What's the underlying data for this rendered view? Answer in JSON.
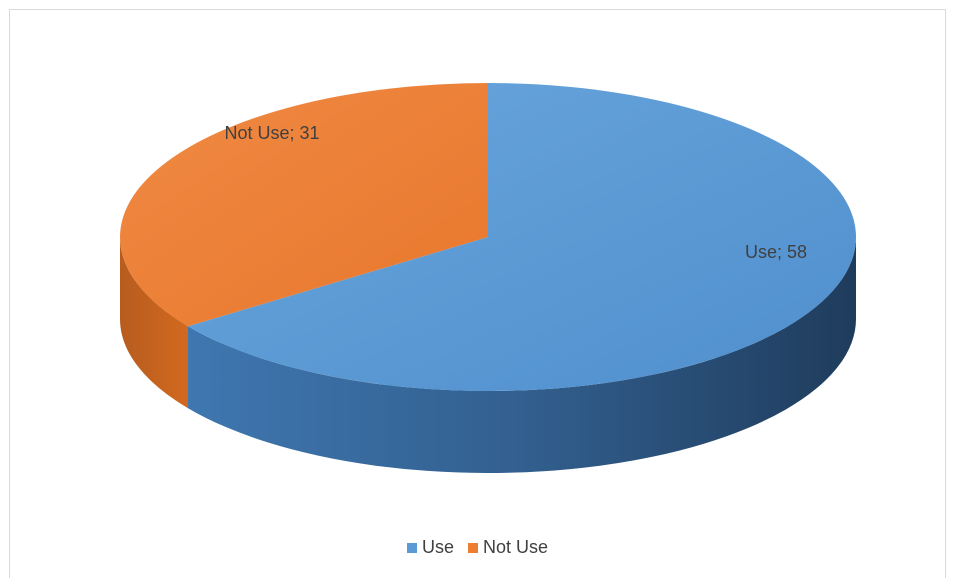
{
  "chart_data": {
    "type": "pie",
    "style": "3d",
    "categories": [
      "Use",
      "Not Use"
    ],
    "values": [
      58,
      31
    ],
    "colors": [
      "#5b9bd5",
      "#ed7d31"
    ],
    "data_labels": [
      "Use; 58",
      "Not Use; 31"
    ],
    "legend": {
      "position": "bottom",
      "entries": [
        "Use",
        "Not Use"
      ]
    },
    "title": ""
  }
}
